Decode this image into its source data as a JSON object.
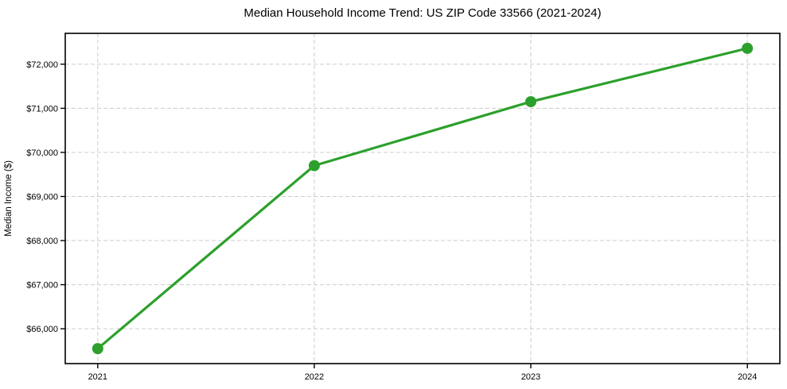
{
  "chart_data": {
    "type": "line",
    "title": "Median Household Income Trend: US ZIP Code 33566 (2021-2024)",
    "xlabel": "",
    "ylabel": "Median Income ($)",
    "x": [
      2021,
      2022,
      2023,
      2024
    ],
    "x_tick_labels": [
      "2021",
      "2022",
      "2023",
      "2024"
    ],
    "values": [
      65550,
      69700,
      71150,
      72360
    ],
    "y_ticks": [
      66000,
      67000,
      68000,
      69000,
      70000,
      71000,
      72000
    ],
    "y_tick_labels": [
      "$66,000",
      "$67,000",
      "$68,000",
      "$69,000",
      "$70,000",
      "$71,000",
      "$72,000"
    ],
    "xlim": [
      2020.85,
      2024.15
    ],
    "ylim": [
      65210,
      72700
    ],
    "grid": true,
    "grid_style": "dashed",
    "legend": "none",
    "line_color": "#2ca02c",
    "marker": "circle",
    "marker_color": "#2ca02c",
    "background_color": "#ffffff",
    "grid_color": "#cccccc",
    "axes_color": "#000000"
  }
}
